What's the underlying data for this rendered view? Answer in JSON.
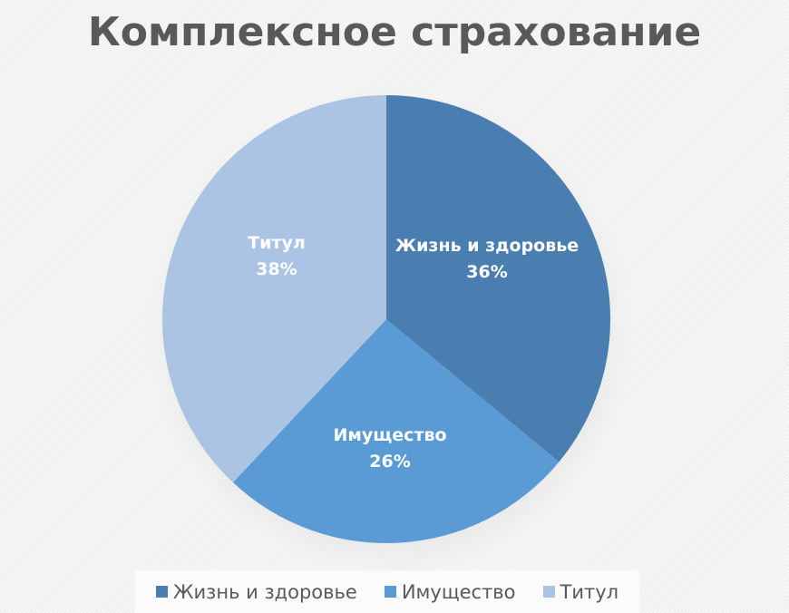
{
  "chart_data": {
    "type": "pie",
    "title": "Комплексное страхование",
    "categories": [
      "Жизнь и здоровье",
      "Имущество",
      "Титул"
    ],
    "values": [
      36,
      26,
      38
    ],
    "value_labels": [
      "36%",
      "26%",
      "38%"
    ],
    "colors": [
      "#4a7eb0",
      "#5b9bd5",
      "#abc4e4"
    ],
    "start_angle_deg": 0,
    "direction": "clockwise",
    "legend_position": "bottom",
    "data_labels": "inside, category name and percentage"
  },
  "title": "Комплексное страхование",
  "slices": [
    {
      "label": "Жизнь и здоровье",
      "pct": "36%",
      "color": "#4a7eb0"
    },
    {
      "label": "Имущество",
      "pct": "26%",
      "color": "#5b9bd5"
    },
    {
      "label": "Титул",
      "pct": "38%",
      "color": "#abc4e4"
    }
  ],
  "legend": [
    {
      "label": "Жизнь и здоровье",
      "color": "#4a7eb0"
    },
    {
      "label": "Имущество",
      "color": "#5b9bd5"
    },
    {
      "label": "Титул",
      "color": "#abc4e4"
    }
  ]
}
